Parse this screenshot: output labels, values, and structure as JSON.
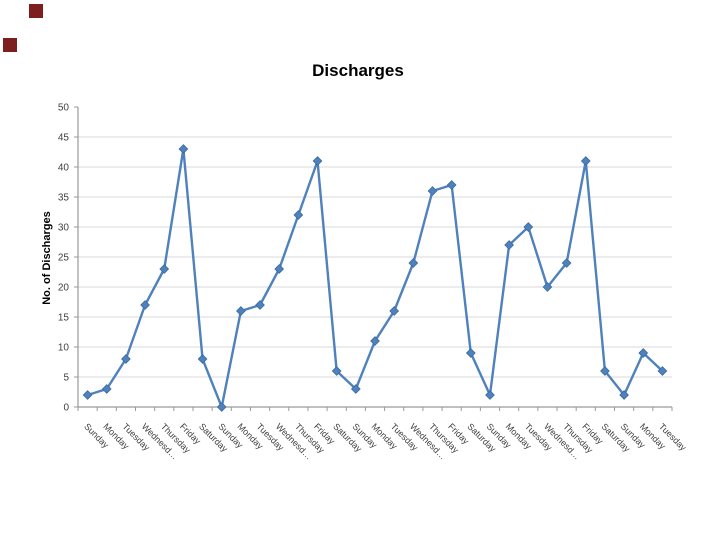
{
  "slide": {
    "decor_square_color": "#7E1F1F"
  },
  "chart_data": {
    "type": "line",
    "title": "Discharges",
    "ylabel": "No. of Discharges",
    "xlabel": "",
    "categories": [
      "Sunday",
      "Monday",
      "Tuesday",
      "Wednesd…",
      "Thursday",
      "Friday",
      "Saturday",
      "Sunday",
      "Monday",
      "Tuesday",
      "Wednesd…",
      "Thursday",
      "Friday",
      "Saturday",
      "Sunday",
      "Monday",
      "Tuesday",
      "Wednesd…",
      "Thursday",
      "Friday",
      "Saturday",
      "Sunday",
      "Monday",
      "Tuesday",
      "Wednesd…",
      "Thursday",
      "Friday",
      "Saturday",
      "Sunday",
      "Monday",
      "Tuesday"
    ],
    "values": [
      2,
      3,
      8,
      17,
      23,
      43,
      8,
      0,
      16,
      17,
      23,
      32,
      41,
      6,
      3,
      11,
      16,
      24,
      36,
      37,
      9,
      2,
      27,
      30,
      20,
      24,
      41,
      6,
      2,
      9,
      6
    ],
    "ylim": [
      0,
      50
    ],
    "ytick_step": 5,
    "grid": true,
    "legend_position": "none",
    "line_color": "#4F81BD",
    "marker": "diamond",
    "marker_edge_color": "#3A699E",
    "gridline_color": "#D9D9D9",
    "axis_color": "#9A9A9A",
    "tick_label_color": "#3F3F3F"
  }
}
